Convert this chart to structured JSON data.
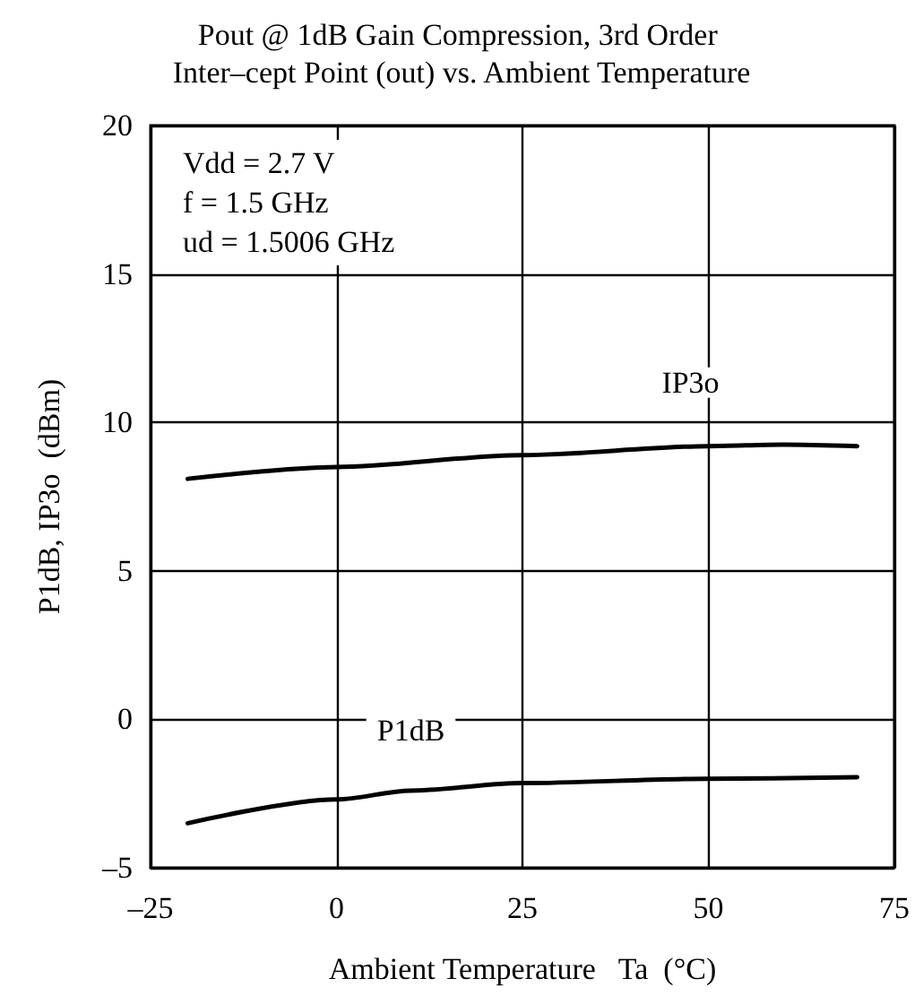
{
  "chart_data": {
    "type": "line",
    "title": "Pout @ 1dB Gain Compression, 3rd Order Inter–cept Point (out) vs. Ambient Temperature",
    "xlabel": "Ambient Temperature   Ta  (°C)",
    "ylabel": "P1dB, IP3o  (dBm)",
    "annotations": [
      "Vdd = 2.7 V",
      "f = 1.5 GHz",
      "ud = 1.5006 GHz"
    ],
    "series": [
      {
        "name": "IP3o",
        "color": "#000000",
        "x": [
          -20,
          0,
          25,
          50,
          60,
          70
        ],
        "values": [
          8.1,
          8.5,
          8.9,
          9.2,
          9.25,
          9.2
        ]
      },
      {
        "name": "P1dB",
        "color": "#000000",
        "x": [
          -20,
          0,
          10,
          25,
          50,
          70
        ],
        "values": [
          -3.5,
          -2.7,
          -2.4,
          -2.15,
          -2.0,
          -1.95
        ]
      }
    ],
    "xlim": [
      -25,
      75
    ],
    "xticks": [
      {
        "value": -25,
        "label": "–25"
      },
      0,
      25,
      50,
      75
    ],
    "ylim": [
      -5,
      20
    ],
    "yticks": [
      {
        "value": -5,
        "label": "–5"
      },
      0,
      5,
      10,
      15,
      20
    ],
    "grid": true,
    "legend": false,
    "marker": "none",
    "line_style": "solid"
  }
}
